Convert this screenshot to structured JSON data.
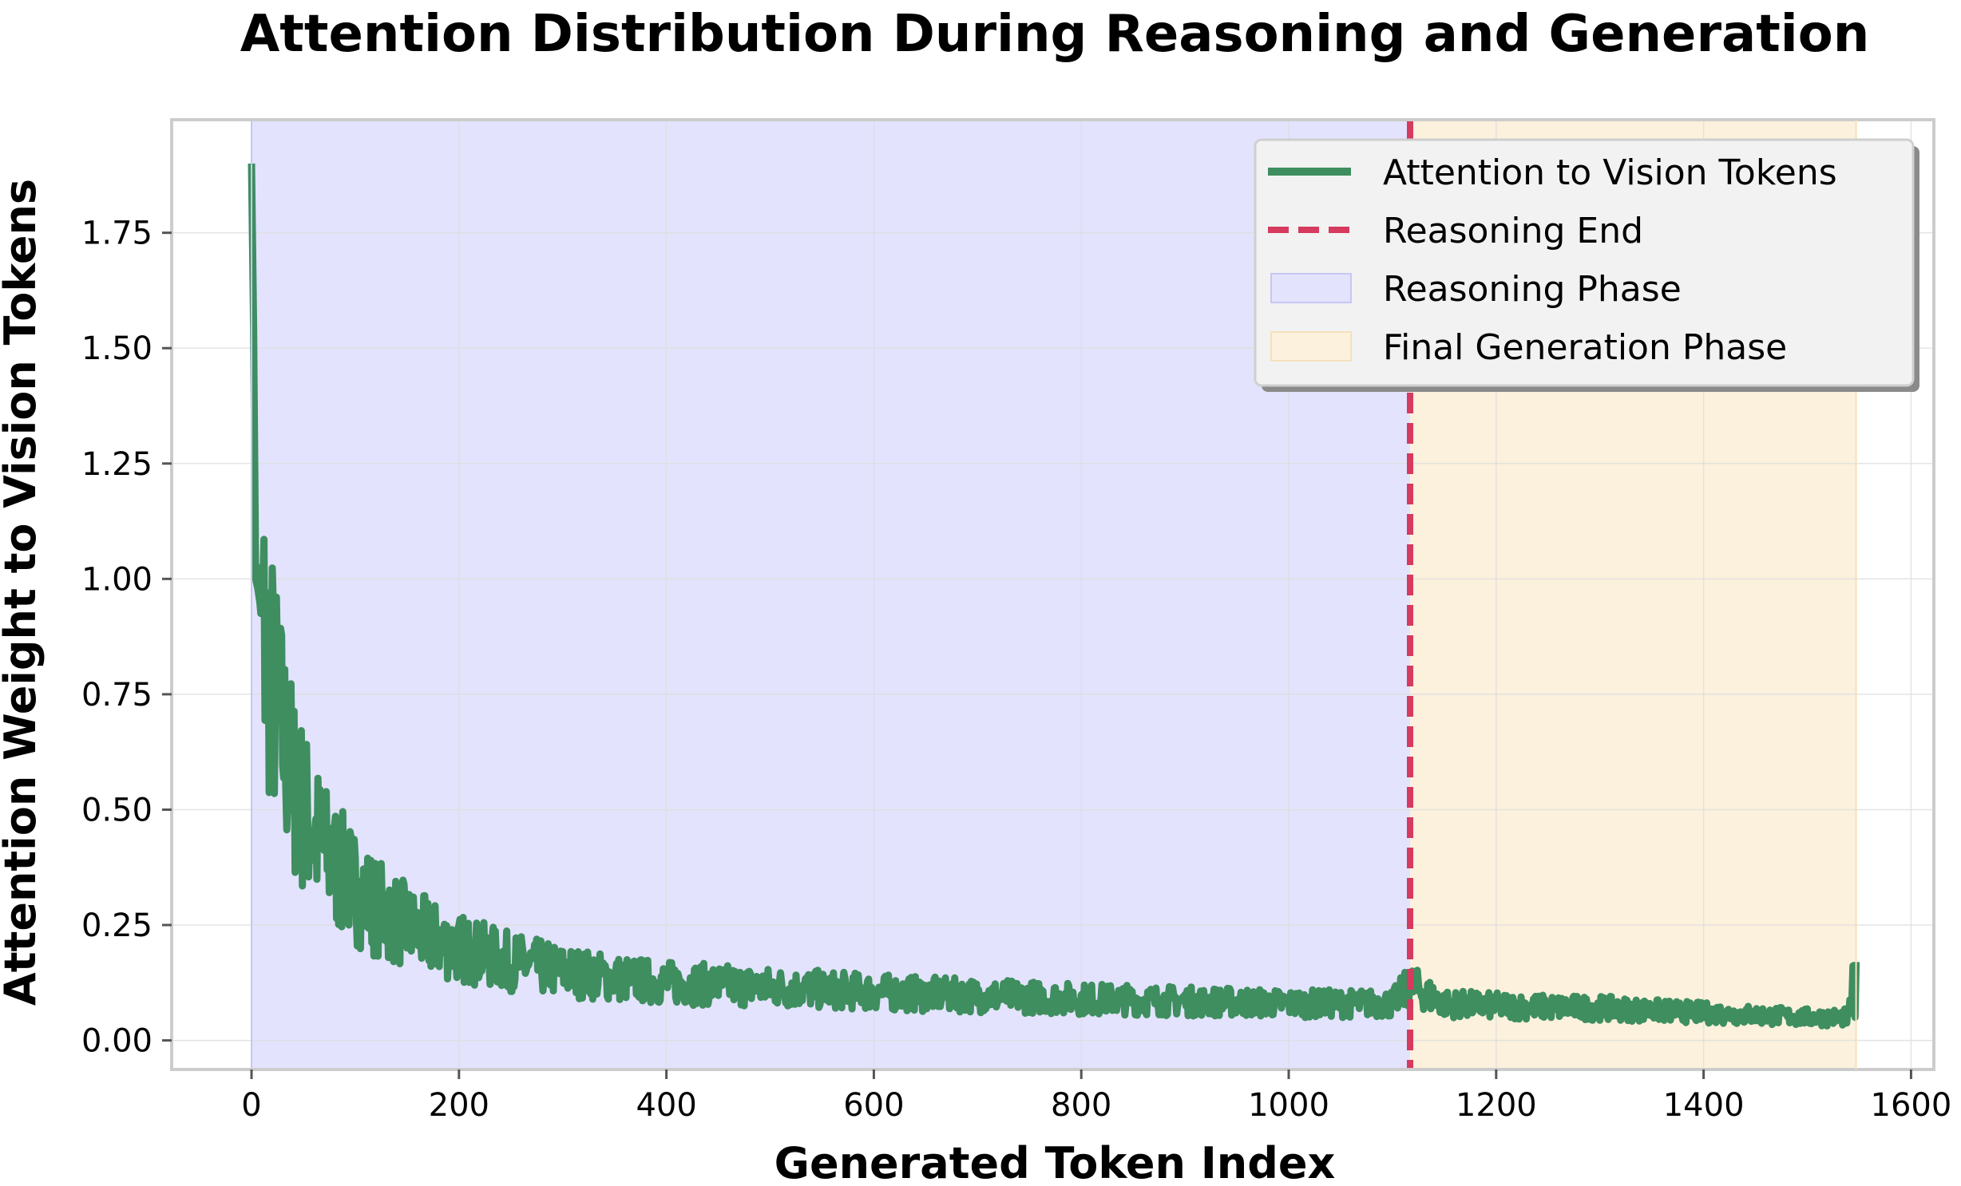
{
  "chart_data": {
    "type": "line",
    "title": "Attention Distribution During Reasoning and Generation",
    "xlabel": "Generated Token Index",
    "ylabel": "Attention Weight to Vision Tokens",
    "xlim": [
      -77,
      1622
    ],
    "ylim": [
      -0.063,
      1.995
    ],
    "xticks": [
      0,
      200,
      400,
      600,
      800,
      1000,
      1200,
      1400,
      1600
    ],
    "xtick_labels": [
      "0",
      "200",
      "400",
      "600",
      "800",
      "1000",
      "1200",
      "1400",
      "1600"
    ],
    "yticks": [
      0.0,
      0.25,
      0.5,
      0.75,
      1.0,
      1.25,
      1.5,
      1.75
    ],
    "ytick_labels": [
      "0.00",
      "0.25",
      "0.50",
      "0.75",
      "1.00",
      "1.25",
      "1.50",
      "1.75"
    ],
    "grid": true,
    "legend_position": "top-right",
    "series": [
      {
        "name": "Attention to Vision Tokens",
        "color": "#3e8e5f",
        "x": [
          0,
          2,
          4,
          6,
          8,
          10,
          14,
          18,
          22,
          28,
          34,
          40,
          50,
          60,
          70,
          80,
          100,
          120,
          140,
          160,
          180,
          200,
          225,
          250,
          275,
          300,
          350,
          400,
          450,
          500,
          550,
          600,
          650,
          700,
          750,
          800,
          850,
          900,
          950,
          1000,
          1050,
          1100,
          1117,
          1150,
          1200,
          1250,
          1300,
          1350,
          1400,
          1450,
          1500,
          1540,
          1547
        ],
        "values": [
          1.9,
          1.55,
          1.0,
          0.98,
          0.95,
          0.9,
          0.85,
          0.8,
          0.75,
          0.68,
          0.62,
          0.56,
          0.5,
          0.45,
          0.41,
          0.38,
          0.33,
          0.29,
          0.26,
          0.235,
          0.215,
          0.2,
          0.185,
          0.17,
          0.16,
          0.15,
          0.135,
          0.125,
          0.12,
          0.115,
          0.11,
          0.105,
          0.1,
          0.097,
          0.094,
          0.09,
          0.088,
          0.085,
          0.083,
          0.08,
          0.08,
          0.08,
          0.12,
          0.08,
          0.075,
          0.072,
          0.07,
          0.065,
          0.06,
          0.055,
          0.05,
          0.05,
          0.17
        ]
      }
    ],
    "reasoning_end_x": 1117,
    "reasoning_phase": [
      0,
      1117
    ],
    "final_generation_phase": [
      1117,
      1547
    ],
    "legend": [
      {
        "label": "Attention to Vision Tokens",
        "kind": "line",
        "color": "#3e8e5f"
      },
      {
        "label": "Reasoning End",
        "kind": "dashed",
        "color": "#d63a5e"
      },
      {
        "label": "Reasoning Phase",
        "kind": "patch",
        "color": "#e3e3fd",
        "edge": "#c6c6f3"
      },
      {
        "label": "Final Generation Phase",
        "kind": "patch",
        "color": "#fcf1dd",
        "edge": "#f4e1bd"
      }
    ],
    "colors": {
      "line": "#3e8e5f",
      "reasoning_end": "#d63a5e",
      "reasoning_fill": "#e3e3fd",
      "final_fill": "#fcf1dd",
      "grid": "#dddddd",
      "frame": "#cccccc"
    }
  }
}
